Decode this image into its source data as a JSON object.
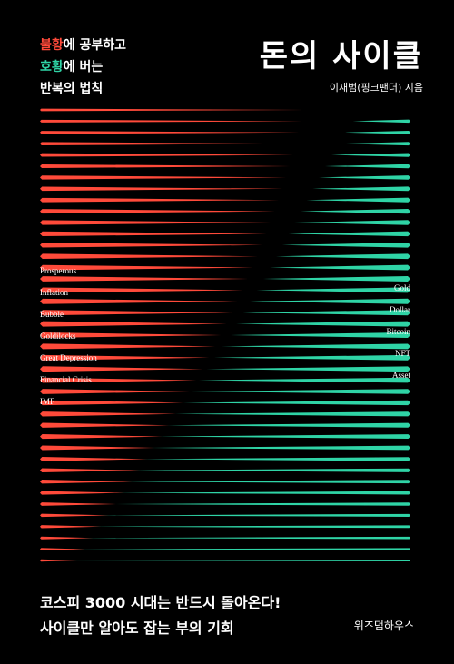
{
  "tagline": {
    "line1_red": "불황",
    "line1_rest": "에 공부하고",
    "line2_green": "호황",
    "line2_rest": "에 버는",
    "line3": "반복의 법칙"
  },
  "title": "돈의 사이클",
  "author": "이재범(핑크팬더) 지음",
  "labels_left": [
    "Prosperous",
    "Inflation",
    "Bubble",
    "Goldilocks",
    "Great Depression",
    "Financial Crisis",
    "IMF"
  ],
  "labels_right": [
    "Gold",
    "Dollar",
    "Bitcoin",
    "NFT",
    "Asset"
  ],
  "bottom_lines": [
    "코스피 3000 시대는 반드시 돌아온다!",
    "사이클만 알아도 잡는 부의 기회"
  ],
  "publisher": "위즈덤하우스",
  "colors": {
    "red": "#ff4a3a",
    "green": "#2fd4a6",
    "background": "#000000"
  }
}
